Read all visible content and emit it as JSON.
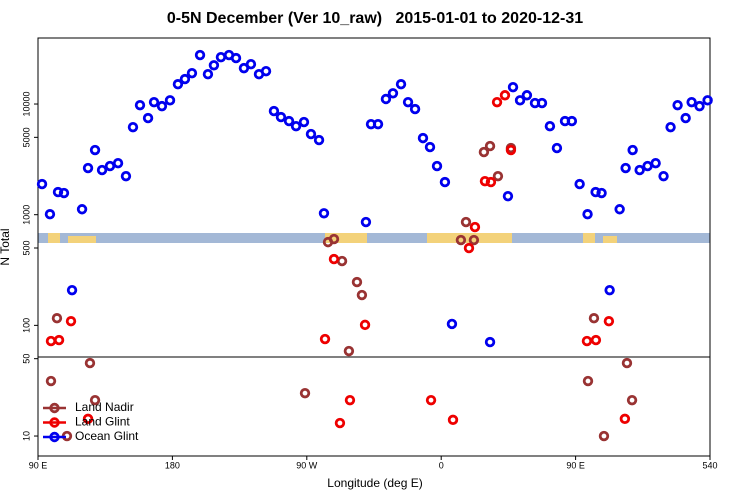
{
  "chart_data": {
    "type": "scatter",
    "title": "0-5N December (Ver 10_raw)   2015-01-01 to 2020-12-31",
    "xlabel": "Longitude (deg E)",
    "ylabel": "N Total",
    "xlim": [
      90,
      540
    ],
    "ylim": [
      6.6,
      39500
    ],
    "log_y": true,
    "legend": "lower left",
    "xticks": [
      {
        "value": 90,
        "label": "90 E"
      },
      180,
      {
        "value": 270,
        "label": "90 W"
      },
      {
        "value": 360,
        "label": "0"
      },
      {
        "value": 450,
        "label": "90 E"
      },
      540
    ],
    "yticks": [
      10,
      50,
      100,
      500,
      1000,
      5000,
      10000
    ],
    "series": [
      {
        "name": "Land Nadir",
        "color": "#993333",
        "x": [
          98.7,
          102.7,
          109.4,
          124.8,
          128.2,
          268.8,
          284.2,
          288.2,
          293.6,
          298.2,
          303.6,
          306.9,
          373.2,
          376.6,
          381.9,
          388.6,
          392.7,
          398,
          406.7,
          458.3,
          462.3,
          469,
          484.4,
          487.8
        ],
        "values": [
          31.4,
          116,
          10,
          45.6,
          21.1,
          24.4,
          565,
          602,
          381,
          58.6,
          246,
          188,
          590,
          858,
          590,
          3680,
          4170,
          2230,
          4000,
          31.4,
          116,
          10,
          45.6,
          21.1
        ]
      },
      {
        "name": "Land Glint",
        "color": "#ee0000",
        "x": [
          98.7,
          104.1,
          112.1,
          123.5,
          282.2,
          288.2,
          292.2,
          298.9,
          309,
          353.2,
          367.9,
          378.6,
          382.6,
          389.3,
          393.3,
          397.4,
          402.7,
          406.7,
          457.6,
          463.6,
          472.3,
          483
        ],
        "values": [
          72.1,
          73.6,
          109,
          14.3,
          75.2,
          397,
          13.1,
          21.1,
          101,
          21.1,
          14,
          499,
          773,
          2010,
          1970,
          10400,
          12000,
          3840,
          72.1,
          73.6,
          109,
          14.3
        ]
      },
      {
        "name": "Ocean Glint",
        "color": "#0000ee",
        "x": [
          92.7,
          98,
          103.4,
          107.4,
          112.8,
          119.5,
          123.5,
          128.2,
          132.9,
          138.2,
          143.6,
          148.9,
          153.6,
          158.3,
          163.7,
          167.7,
          173,
          178.4,
          183.7,
          188.4,
          193.1,
          198.5,
          203.8,
          207.8,
          212.5,
          217.9,
          222.6,
          227.9,
          232.6,
          238,
          242.7,
          248,
          252.7,
          258.1,
          262.8,
          268.1,
          272.8,
          278.2,
          281.5,
          309.6,
          313,
          317.7,
          323,
          327.7,
          333.1,
          337.8,
          342.5,
          347.8,
          352.5,
          357.2,
          362.5,
          367.2,
          392.7,
          404.7,
          408.1,
          412.8,
          417.4,
          422.8,
          427.5,
          432.8,
          437.5,
          442.9,
          447.5,
          452.7,
          458,
          463.4,
          467.4,
          472.8,
          479.5,
          483.5,
          488.2,
          492.9,
          498.2,
          503.6,
          508.9,
          513.6,
          518.3,
          523.7,
          527.7,
          533,
          538.4
        ],
        "values": [
          1890,
          1010,
          1600,
          1570,
          208,
          1120,
          2640,
          3840,
          2530,
          2750,
          2920,
          2230,
          6180,
          9770,
          7460,
          10400,
          9570,
          10800,
          15100,
          16800,
          19000,
          27700,
          18600,
          22400,
          26500,
          27700,
          26000,
          21100,
          22900,
          18600,
          19800,
          8630,
          7620,
          7010,
          6310,
          6870,
          5350,
          4720,
          1030,
          858,
          6580,
          6580,
          11100,
          12500,
          15100,
          10400,
          9000,
          4920,
          4080,
          2750,
          1970,
          103,
          70.6,
          1470,
          14200,
          10800,
          12000,
          10200,
          10200,
          6310,
          4000,
          7010,
          7010,
          1890,
          1010,
          1600,
          1570,
          208,
          1120,
          2640,
          3840,
          2530,
          2750,
          2920,
          2230,
          6180,
          9770,
          7460,
          10400,
          9570,
          10800
        ]
      }
    ]
  }
}
